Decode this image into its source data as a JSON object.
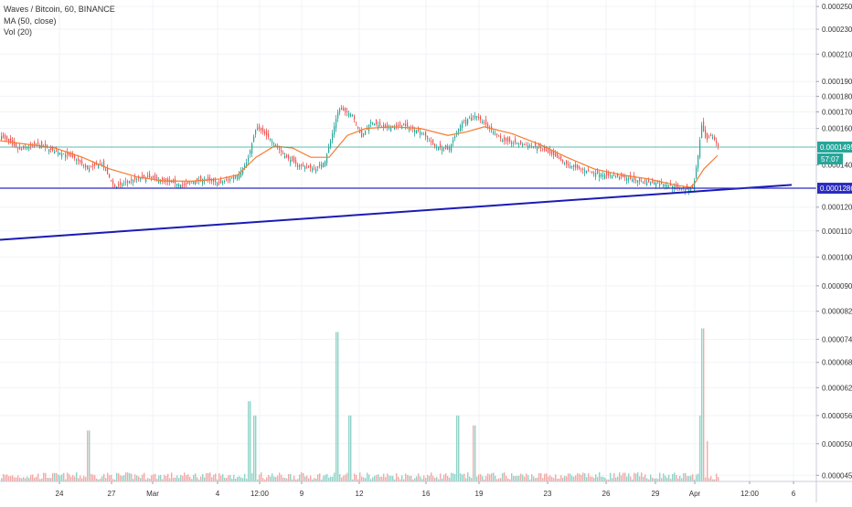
{
  "legend": {
    "symbol_line": "Waves / Bitcoin, 60, BINANCE",
    "ma_line": "MA (50, close)",
    "vol_line": "Vol (20)"
  },
  "colors": {
    "up": "#26a69a",
    "down": "#ef5350",
    "vol_up": "#8fd3c8",
    "vol_down": "#f4a9a6",
    "ma": "#f57c30",
    "trendline": "#1b1bb5",
    "price_line": "#26a69a",
    "hline": "#2b2bc0",
    "grid": "#f0f3f7"
  },
  "chart_data": {
    "type": "candlestick",
    "title": "Waves / Bitcoin, 60, BINANCE",
    "price_axis": {
      "range": [
        4.4e-05,
        0.000256
      ],
      "scale": "log",
      "ticks": [
        "0.0002500",
        "0.0002300",
        "0.0002100",
        "0.0001900",
        "0.0001800",
        "0.0001700",
        "0.0001600",
        "0.0001400",
        "0.0001200",
        "0.0001100",
        "0.0001000",
        "0.0000900",
        "0.0000820",
        "0.0000740",
        "0.0000680",
        "0.0000620",
        "0.0000560",
        "0.0000505",
        "0.0000450"
      ]
    },
    "time_axis": {
      "ticks": [
        "24",
        "27",
        "Mar",
        "4",
        "12:00",
        "9",
        "12",
        "16",
        "19",
        "23",
        "26",
        "29",
        "Apr",
        "12:00",
        "6"
      ]
    },
    "last_price": "0.0001495",
    "countdown": "57:07",
    "horizontal_line": "0.0001286",
    "close_path": [
      [
        0,
        0.000156
      ],
      [
        20,
        0.000148
      ],
      [
        40,
        0.000151
      ],
      [
        60,
        0.000147
      ],
      [
        80,
        0.000144
      ],
      [
        95,
        0.000138
      ],
      [
        110,
        0.000141
      ],
      [
        125,
        0.000129
      ],
      [
        140,
        0.000132
      ],
      [
        160,
        0.000134
      ],
      [
        180,
        0.000132
      ],
      [
        200,
        0.00013
      ],
      [
        220,
        0.000133
      ],
      [
        240,
        0.000131
      ],
      [
        260,
        0.000135
      ],
      [
        270,
        0.000142
      ],
      [
        280,
        0.000161
      ],
      [
        295,
        0.000154
      ],
      [
        310,
        0.000145
      ],
      [
        325,
        0.00014
      ],
      [
        345,
        0.000138
      ],
      [
        355,
        0.000142
      ],
      [
        362,
        0.000155
      ],
      [
        370,
        0.000172
      ],
      [
        385,
        0.000168
      ],
      [
        395,
        0.000155
      ],
      [
        405,
        0.000164
      ],
      [
        420,
        0.00016
      ],
      [
        440,
        0.000162
      ],
      [
        460,
        0.000158
      ],
      [
        475,
        0.00015
      ],
      [
        490,
        0.000148
      ],
      [
        505,
        0.000164
      ],
      [
        520,
        0.000168
      ],
      [
        535,
        0.00016
      ],
      [
        550,
        0.000153
      ],
      [
        570,
        0.000151
      ],
      [
        590,
        0.000149
      ],
      [
        605,
        0.000145
      ],
      [
        620,
        0.00014
      ],
      [
        640,
        0.000137
      ],
      [
        660,
        0.000135
      ],
      [
        680,
        0.000134
      ],
      [
        700,
        0.000132
      ],
      [
        720,
        0.000131
      ],
      [
        740,
        0.000129
      ],
      [
        752,
        0.000128
      ],
      [
        758,
        0.000129
      ],
      [
        763,
        0.000145
      ],
      [
        767,
        0.000162
      ],
      [
        772,
        0.000153
      ],
      [
        778,
        0.000156
      ],
      [
        785,
        0.00015
      ]
    ],
    "ma_path": [
      [
        0,
        0.000153
      ],
      [
        30,
        0.000151
      ],
      [
        60,
        0.000149
      ],
      [
        90,
        0.000144
      ],
      [
        120,
        0.000138
      ],
      [
        150,
        0.000134
      ],
      [
        180,
        0.000132
      ],
      [
        210,
        0.000132
      ],
      [
        240,
        0.000133
      ],
      [
        260,
        0.000135
      ],
      [
        280,
        0.000144
      ],
      [
        300,
        0.00015
      ],
      [
        320,
        0.000149
      ],
      [
        340,
        0.000144
      ],
      [
        360,
        0.000144
      ],
      [
        380,
        0.000156
      ],
      [
        400,
        0.00016
      ],
      [
        430,
        0.000161
      ],
      [
        460,
        0.00016
      ],
      [
        490,
        0.000156
      ],
      [
        510,
        0.000158
      ],
      [
        530,
        0.000161
      ],
      [
        560,
        0.000157
      ],
      [
        590,
        0.000151
      ],
      [
        620,
        0.000144
      ],
      [
        650,
        0.000138
      ],
      [
        680,
        0.000135
      ],
      [
        710,
        0.000133
      ],
      [
        740,
        0.00013
      ],
      [
        755,
        0.000129
      ],
      [
        760,
        0.000131
      ],
      [
        770,
        0.000138
      ],
      [
        785,
        0.000145
      ]
    ],
    "volume_spikes": [
      [
        96,
        5.3e-05
      ],
      [
        272,
        5.9e-05
      ],
      [
        278,
        5.6e-05
      ],
      [
        368,
        7.6e-05
      ],
      [
        382,
        5.6e-05
      ],
      [
        500,
        5.6e-05
      ],
      [
        518,
        5.4e-05
      ],
      [
        765,
        5.6e-05
      ],
      [
        768,
        7.7e-05
      ],
      [
        773,
        5.1e-05
      ]
    ],
    "trendline": [
      [
        0,
        0.0001065
      ],
      [
        866,
        0.0001302
      ]
    ],
    "ylabel": "",
    "xlabel": ""
  }
}
